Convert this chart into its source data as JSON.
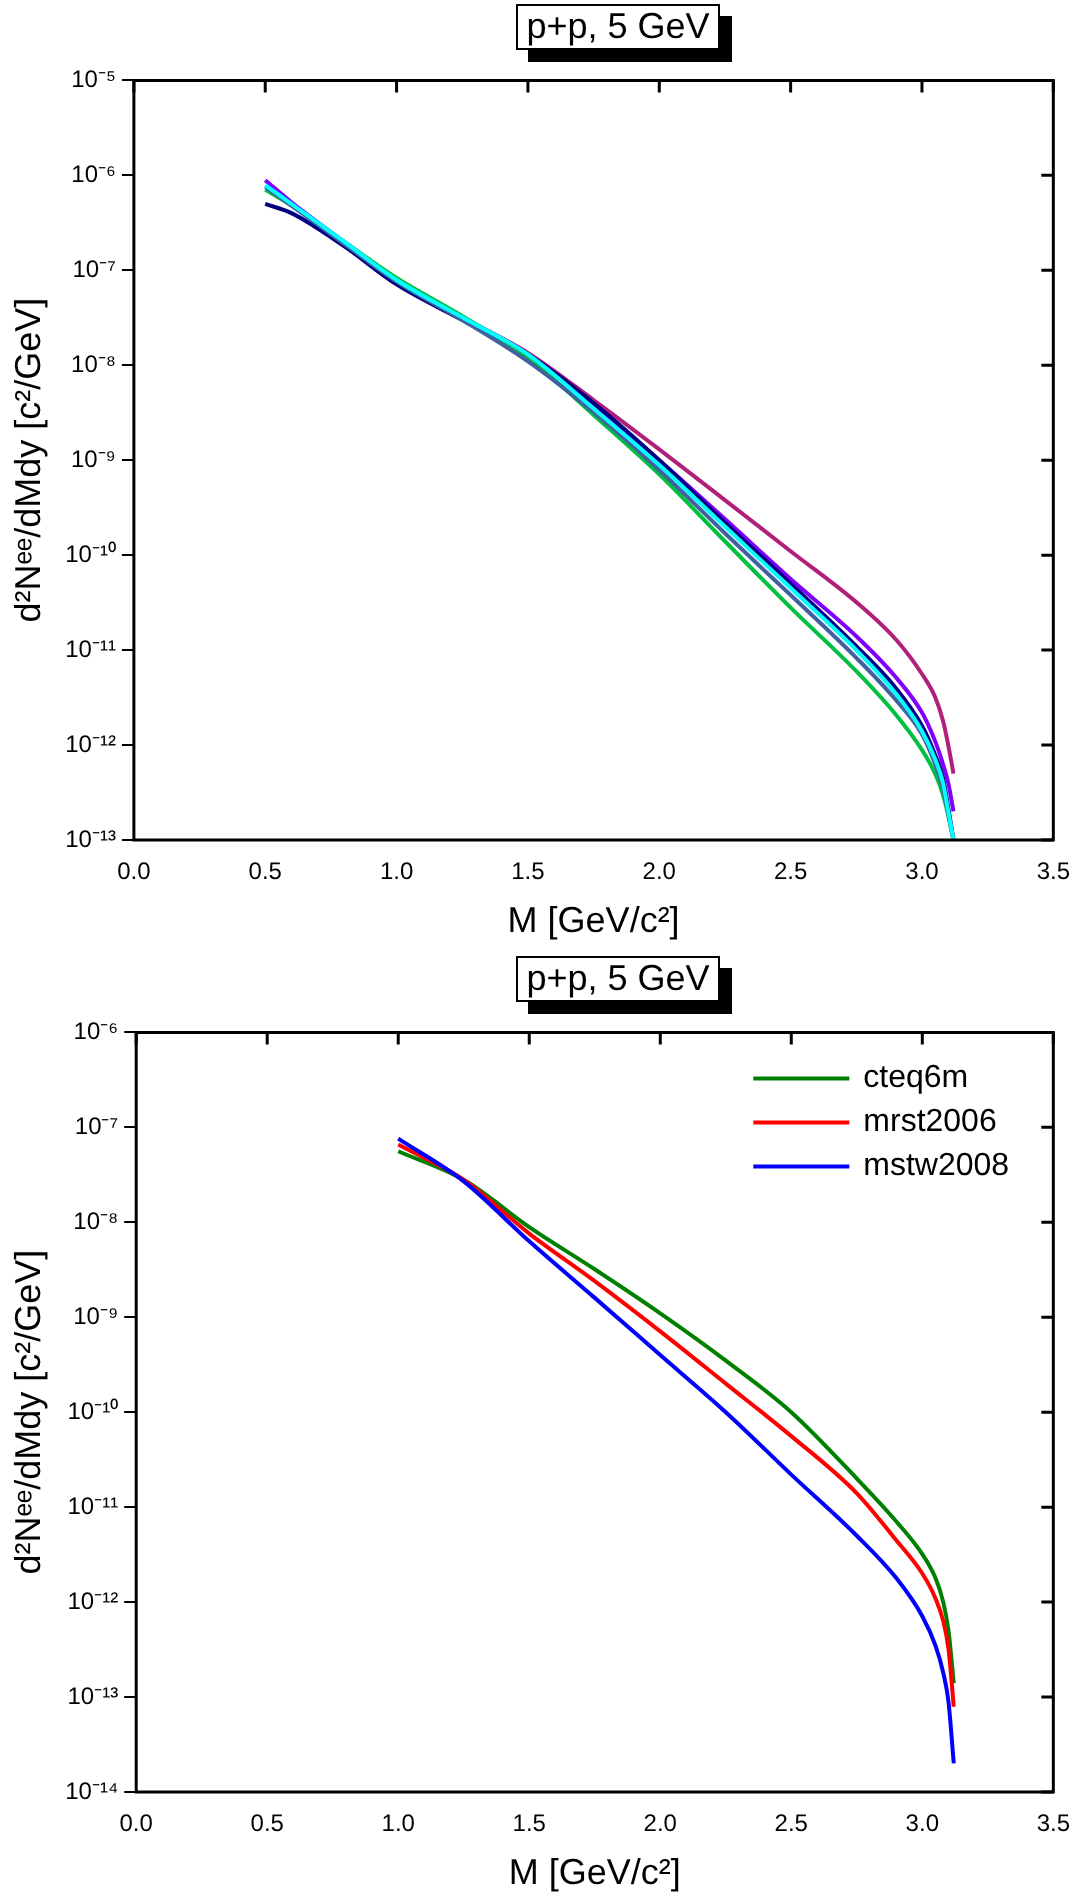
{
  "chart_data": [
    {
      "type": "line",
      "title": "p+p, 5 GeV",
      "xlabel": "M [GeV/c²]",
      "ylabel": "d²Nᵉᵉ/dMdy [c²/GeV]",
      "log": "y",
      "marker": "none",
      "x": [
        0.5,
        0.6,
        0.8,
        1.0,
        1.25,
        1.5,
        1.75,
        2.0,
        2.25,
        2.5,
        2.75,
        2.9,
        3.0,
        3.05,
        3.08,
        3.1,
        3.12
      ],
      "xlim": [
        0,
        3.5
      ],
      "xticks": [
        {
          "value": 0,
          "label": "0.0"
        },
        {
          "value": 0.5,
          "label": "0.5"
        },
        {
          "value": 1,
          "label": "1.0"
        },
        {
          "value": 1.5,
          "label": "1.5"
        },
        {
          "value": 2,
          "label": "2.0"
        },
        {
          "value": 2.5,
          "label": "2.5"
        },
        {
          "value": 3,
          "label": "3.0"
        },
        {
          "value": 3.5,
          "label": "3.5"
        }
      ],
      "ylim": [
        1e-13,
        1e-05
      ],
      "yticks": [
        {
          "value": 1e-13,
          "label": "10⁻¹³"
        },
        {
          "value": 1e-12,
          "label": "10⁻¹²"
        },
        {
          "value": 1e-11,
          "label": "10⁻¹¹"
        },
        {
          "value": 1e-10,
          "label": "10⁻¹⁰"
        },
        {
          "value": 1e-09,
          "label": "10⁻⁹"
        },
        {
          "value": 1e-08,
          "label": "10⁻⁸"
        },
        {
          "value": 1e-07,
          "label": "10⁻⁷"
        },
        {
          "value": 1e-06,
          "label": "10⁻⁶"
        },
        {
          "value": 1e-05,
          "label": "10⁻⁵"
        }
      ],
      "series": [
        {
          "color": "#b0207a",
          "values": [
            null,
            null,
            null,
            null,
            3.2e-08,
            1.35e-08,
            4.3e-09,
            1.3e-09,
            3.8e-10,
            1.1e-10,
            3.2e-11,
            1.3e-11,
            5.6e-12,
            3.2e-12,
            1.8e-12,
            1e-12,
            5e-13
          ]
        },
        {
          "color": "#8000ff",
          "values": [
            8.9e-07,
            5.2e-07,
            2e-07,
            7.9e-08,
            3.2e-08,
            1.3e-08,
            3.8e-09,
            1e-09,
            2.4e-10,
            5.6e-11,
            1.4e-11,
            5.2e-12,
            2.2e-12,
            1.1e-12,
            6.3e-13,
            4e-13,
            2e-13
          ]
        },
        {
          "color": "#000080",
          "values": [
            5e-07,
            4e-07,
            1.8e-07,
            7.1e-08,
            3e-08,
            1.3e-08,
            4e-09,
            1e-09,
            2.2e-10,
            5e-11,
            1.1e-11,
            4e-12,
            1.6e-12,
            7.9e-13,
            4.5e-13,
            2.2e-13,
            1e-13
          ]
        },
        {
          "color": "#00c040",
          "values": [
            7.1e-07,
            4.8e-07,
            2e-07,
            8.3e-08,
            3.3e-08,
            1.2e-08,
            3e-09,
            7.1e-10,
            1.4e-10,
            2.8e-11,
            6e-12,
            2.1e-12,
            8.9e-13,
            5e-13,
            3e-13,
            1.8e-13,
            1e-13
          ]
        },
        {
          "color": "#4060a0",
          "values": [
            7.6e-07,
            4.8e-07,
            1.9e-07,
            7.6e-08,
            3e-08,
            1.1e-08,
            3.2e-09,
            7.9e-10,
            1.7e-10,
            3.8e-11,
            8.3e-12,
            3e-12,
            1.3e-12,
            6.3e-13,
            3.5e-13,
            1.9e-13,
            1e-13
          ]
        },
        {
          "color": "#00ffff",
          "values": [
            7.9e-07,
            5e-07,
            2e-07,
            7.9e-08,
            3.2e-08,
            1.3e-08,
            3.5e-09,
            8.9e-10,
            2e-10,
            4.5e-11,
            1e-11,
            3.5e-12,
            1.4e-12,
            7.1e-13,
            4e-13,
            2e-13,
            1e-13
          ]
        }
      ]
    },
    {
      "type": "line",
      "title": "p+p, 5 GeV",
      "xlabel": "M [GeV/c²]",
      "ylabel": "d²Nᵉᵉ/dMdy [c²/GeV]",
      "log": "y",
      "marker": "none",
      "legend": "top right",
      "x": [
        1.0,
        1.25,
        1.5,
        1.75,
        2.0,
        2.25,
        2.5,
        2.75,
        2.9,
        3.0,
        3.05,
        3.08,
        3.1,
        3.12
      ],
      "xlim": [
        0,
        3.5
      ],
      "xticks": [
        {
          "value": 0,
          "label": "0.0"
        },
        {
          "value": 0.5,
          "label": "0.5"
        },
        {
          "value": 1,
          "label": "1.0"
        },
        {
          "value": 1.5,
          "label": "1.5"
        },
        {
          "value": 2,
          "label": "2.0"
        },
        {
          "value": 2.5,
          "label": "2.5"
        },
        {
          "value": 3,
          "label": "3.0"
        },
        {
          "value": 3.5,
          "label": "3.5"
        }
      ],
      "ylim": [
        1e-14,
        1e-06
      ],
      "yticks": [
        {
          "value": 1e-14,
          "label": "10⁻¹⁴"
        },
        {
          "value": 1e-13,
          "label": "10⁻¹³"
        },
        {
          "value": 1e-12,
          "label": "10⁻¹²"
        },
        {
          "value": 1e-11,
          "label": "10⁻¹¹"
        },
        {
          "value": 1e-10,
          "label": "10⁻¹⁰"
        },
        {
          "value": 1e-09,
          "label": "10⁻⁹"
        },
        {
          "value": 1e-08,
          "label": "10⁻⁸"
        },
        {
          "value": 1e-07,
          "label": "10⁻⁷"
        },
        {
          "value": 1e-06,
          "label": "10⁻⁶"
        }
      ],
      "series": [
        {
          "name": "cteq6m",
          "color": "#008000",
          "values": [
            5.6e-08,
            2.8e-08,
            8.9e-09,
            3.2e-09,
            1.1e-09,
            3.5e-10,
            1e-10,
            2e-11,
            7.1e-12,
            3.2e-12,
            1.8e-12,
            1e-12,
            5e-13,
            1.4e-13
          ]
        },
        {
          "name": "mrst2006",
          "color": "#ff0000",
          "values": [
            6.6e-08,
            2.8e-08,
            7.6e-09,
            2.4e-09,
            7.1e-10,
            2e-10,
            5.6e-11,
            1.4e-11,
            4.5e-12,
            2e-12,
            1.1e-12,
            6.3e-13,
            3.2e-13,
            7.9e-14
          ]
        },
        {
          "name": "mstw2008",
          "color": "#0000ff",
          "values": [
            7.6e-08,
            2.7e-08,
            6.3e-09,
            1.6e-09,
            4e-10,
            1e-10,
            2.2e-11,
            5e-12,
            1.8e-12,
            7.1e-13,
            3.5e-13,
            1.8e-13,
            8.9e-14,
            2e-14
          ]
        }
      ]
    }
  ]
}
